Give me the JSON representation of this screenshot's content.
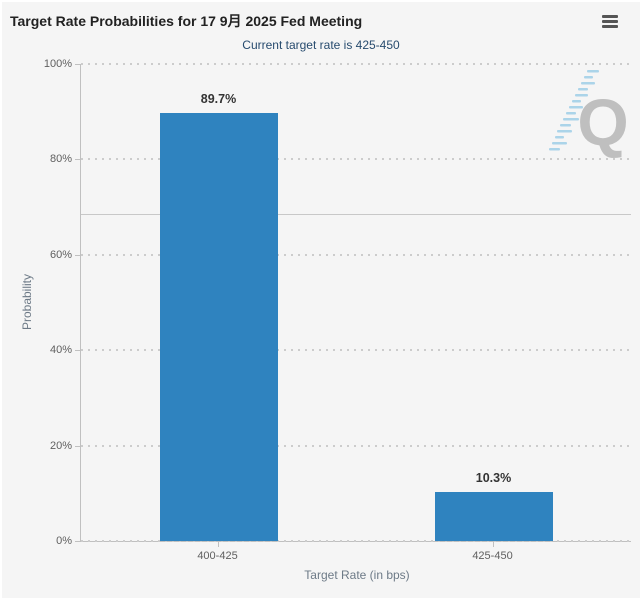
{
  "chart_data": {
    "type": "bar",
    "title": "Target Rate Probabilities for 17 9月 2025 Fed Meeting",
    "subtitle": "Current target rate is 425-450",
    "xlabel": "Target Rate (in bps)",
    "ylabel": "Probability",
    "categories": [
      "400-425",
      "425-450"
    ],
    "values": [
      89.7,
      10.3
    ],
    "data_labels": [
      "89.7%",
      "10.3%"
    ],
    "ylim": [
      0,
      100
    ],
    "yticks": [
      {
        "value": 0,
        "label": "0%"
      },
      {
        "value": 20,
        "label": "20%"
      },
      {
        "value": 40,
        "label": "40%"
      },
      {
        "value": 60,
        "label": "60%"
      },
      {
        "value": 80,
        "label": "80%"
      },
      {
        "value": 100,
        "label": "100%"
      }
    ],
    "grid": "horizontal dotted lines at 20% steps",
    "legend_position": "none",
    "reference_line_value": 68.5,
    "colors": {
      "bar": "#2f83bf",
      "axis_line": "#c0c0c0",
      "grid_dot": "#cccccc",
      "title_text": "#222222",
      "subtitle_text": "#274b6e",
      "tick_label": "#606060",
      "axis_title": "#6d7a87",
      "data_label": "#333333",
      "panel_background": "#f5f5f5",
      "watermark_q": "#bdbdbd",
      "watermark_streak": "#9fcfe8",
      "menu_icon": "#555555"
    }
  },
  "icons": {
    "context_menu": "hamburger-icon",
    "watermark": "quikstrike-q-logo"
  }
}
